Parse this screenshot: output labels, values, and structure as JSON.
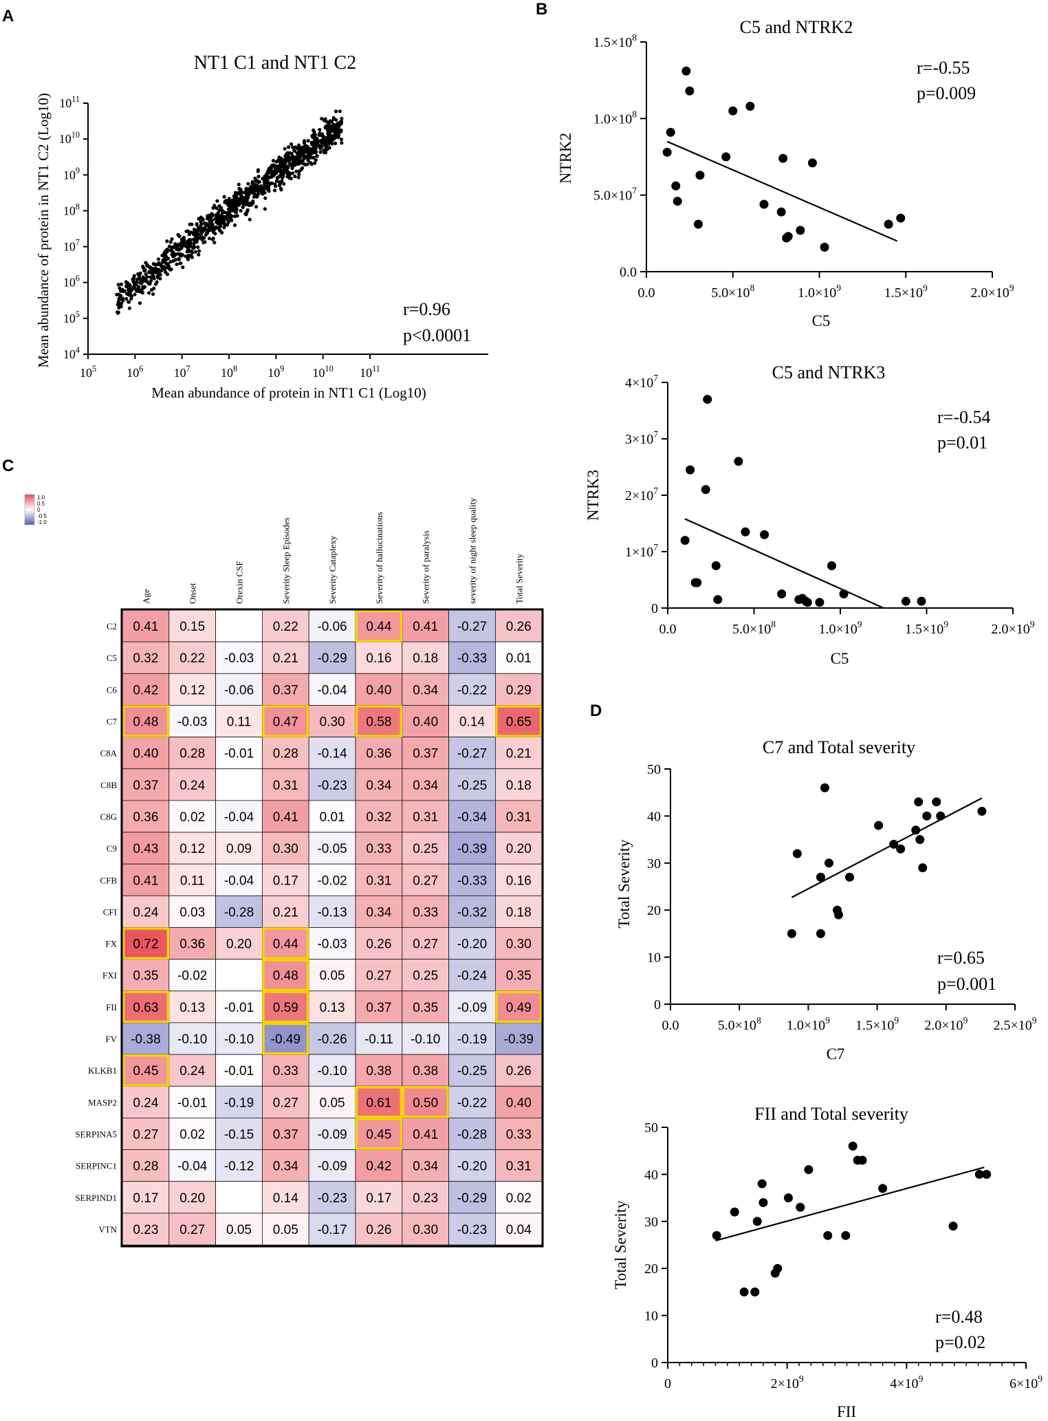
{
  "panels": {
    "a": {
      "letter": "A"
    },
    "b": {
      "letter": "B"
    },
    "c": {
      "letter": "C"
    },
    "d": {
      "letter": "D"
    }
  },
  "chart_data": [
    {
      "id": "A",
      "type": "scatter",
      "title": "NT1 C1 and NT1 C2",
      "xlabel": "Mean abundance of protein in NT1 C1 (Log10)",
      "ylabel": "Mean abundance of protein in NT1 C2 (Log10)",
      "xscale": "log10",
      "yscale": "log10",
      "xlim": [
        5,
        11
      ],
      "ylim": [
        4,
        11
      ],
      "xticks": [
        5,
        6,
        7,
        8,
        9,
        10,
        11
      ],
      "yticks": [
        4,
        5,
        6,
        7,
        8,
        9,
        10,
        11
      ],
      "annotation": [
        "r=0.96",
        "p<0.0001"
      ],
      "n_points_approx": 1100,
      "trend": "log10(y) ≈ log10(x) with spread ~0.4 decades; x from ~5.6 to ~10.4"
    },
    {
      "id": "B1",
      "type": "scatter",
      "title": "C5 and NTRK2",
      "xlabel": "C5",
      "ylabel": "NTRK2",
      "xlim": [
        0,
        2000000000
      ],
      "ylim": [
        0,
        150000000
      ],
      "xticks": [
        "0.0",
        "5.0×10⁸",
        "1.0×10⁹",
        "1.5×10⁹",
        "2.0×10⁹"
      ],
      "yticks": [
        "0.0",
        "5.0×10⁷",
        "1.0×10⁸",
        "1.5×10⁸"
      ],
      "annotation": [
        "r=-0.55",
        "p=0.009"
      ],
      "points": [
        [
          0.12,
          7.8
        ],
        [
          0.14,
          9.1
        ],
        [
          0.17,
          5.6
        ],
        [
          0.18,
          4.6
        ],
        [
          0.23,
          13.1
        ],
        [
          0.25,
          11.8
        ],
        [
          0.3,
          3.1
        ],
        [
          0.31,
          6.3
        ],
        [
          0.46,
          7.5
        ],
        [
          0.5,
          10.5
        ],
        [
          0.6,
          10.8
        ],
        [
          0.68,
          4.4
        ],
        [
          0.78,
          3.9
        ],
        [
          0.79,
          7.4
        ],
        [
          0.81,
          2.2
        ],
        [
          0.82,
          2.3
        ],
        [
          0.89,
          2.7
        ],
        [
          0.96,
          7.1
        ],
        [
          1.03,
          1.6
        ],
        [
          1.4,
          3.1
        ],
        [
          1.47,
          3.5
        ]
      ],
      "points_units": "x in 1e9, y in 1e7",
      "fit": {
        "x0": 0.12,
        "y0": 8.5,
        "x1": 1.45,
        "y1": 2.0
      }
    },
    {
      "id": "B2",
      "type": "scatter",
      "title": "C5 and NTRK3",
      "xlabel": "C5",
      "ylabel": "NTRK3",
      "xlim": [
        0,
        2000000000
      ],
      "ylim": [
        0,
        40000000
      ],
      "xticks": [
        "0.0",
        "5.0×10⁸",
        "1.0×10⁹",
        "1.5×10⁹",
        "2.0×10⁹"
      ],
      "yticks": [
        "0",
        "1×10⁷",
        "2×10⁷",
        "3×10⁷",
        "4×10⁷"
      ],
      "annotation": [
        "r=-0.54",
        "p=0.01"
      ],
      "points": [
        [
          0.1,
          1.2
        ],
        [
          0.13,
          2.45
        ],
        [
          0.16,
          0.45
        ],
        [
          0.17,
          0.45
        ],
        [
          0.22,
          2.1
        ],
        [
          0.23,
          3.7
        ],
        [
          0.28,
          0.75
        ],
        [
          0.29,
          0.15
        ],
        [
          0.41,
          2.6
        ],
        [
          0.45,
          1.35
        ],
        [
          0.56,
          1.3
        ],
        [
          0.66,
          0.25
        ],
        [
          0.76,
          0.15
        ],
        [
          0.78,
          0.17
        ],
        [
          0.8,
          0.12
        ],
        [
          0.81,
          0.1
        ],
        [
          0.88,
          0.1
        ],
        [
          0.95,
          0.75
        ],
        [
          1.02,
          0.25
        ],
        [
          1.38,
          0.12
        ],
        [
          1.47,
          0.12
        ]
      ],
      "points_units": "x in 1e9, y in 1e7",
      "fit": {
        "x0": 0.1,
        "y0": 1.58,
        "x1": 1.25,
        "y1": 0.0
      }
    },
    {
      "id": "C",
      "type": "heatmap",
      "columns": [
        "Age",
        "Onset",
        "Orexin CSF",
        "Severity Sleep Episodes",
        "Severity Cataplexy",
        "Severity of hallucinations",
        "Severity of paralysis",
        "severity of night sleep quality",
        "Total Severity"
      ],
      "rows": [
        "C2",
        "C5",
        "C6",
        "C7",
        "C8A",
        "C8B",
        "C8G",
        "C9",
        "CFB",
        "CFI",
        "FX",
        "FXI",
        "FII",
        "FV",
        "KLKB1",
        "MASP2",
        "SERPINA5",
        "SERPINC1",
        "SERPIND1",
        "VTN"
      ],
      "values": [
        [
          "0.41",
          "0.15",
          "",
          "0.22",
          "-0.06",
          "0.44",
          "0.41",
          "-0.27",
          "0.26"
        ],
        [
          "0.32",
          "0.22",
          "-0.03",
          "0.21",
          "-0.29",
          "0.16",
          "0.18",
          "-0.33",
          "0.01"
        ],
        [
          "0.42",
          "0.12",
          "-0.06",
          "0.37",
          "-0.04",
          "0.40",
          "0.34",
          "-0.22",
          "0.29"
        ],
        [
          "0.48",
          "-0.03",
          "0.11",
          "0.47",
          "0.30",
          "0.58",
          "0.40",
          "0.14",
          "0.65"
        ],
        [
          "0.40",
          "0.28",
          "-0.01",
          "0.28",
          "-0.14",
          "0.36",
          "0.37",
          "-0.27",
          "0.21"
        ],
        [
          "0.37",
          "0.24",
          "",
          "0.31",
          "-0.23",
          "0.34",
          "0.34",
          "-0.25",
          "0.18"
        ],
        [
          "0.36",
          "0.02",
          "-0.04",
          "0.41",
          "0.01",
          "0.32",
          "0.31",
          "-0.34",
          "0.31"
        ],
        [
          "0.43",
          "0.12",
          "0.09",
          "0.30",
          "-0.05",
          "0.33",
          "0.25",
          "-0.39",
          "0.20"
        ],
        [
          "0.41",
          "0.11",
          "-0.04",
          "0.17",
          "-0.02",
          "0.31",
          "0.27",
          "-0.33",
          "0.16"
        ],
        [
          "0.24",
          "0.03",
          "-0.28",
          "0.21",
          "-0.13",
          "0.34",
          "0.33",
          "-0.32",
          "0.18"
        ],
        [
          "0.72",
          "0.36",
          "0.20",
          "0.44",
          "-0.03",
          "0.26",
          "0.27",
          "-0.20",
          "0.30"
        ],
        [
          "0.35",
          "-0.02",
          "",
          "0.48",
          "0.05",
          "0.27",
          "0.25",
          "-0.24",
          "0.35"
        ],
        [
          "0.63",
          "0.13",
          "-0.01",
          "0.59",
          "0.13",
          "0.37",
          "0.35",
          "-0.09",
          "0.49"
        ],
        [
          "-0.38",
          "-0.10",
          "-0.10",
          "-0.49",
          "-0.26",
          "-0.11",
          "-0.10",
          "-0.19",
          "-0.39"
        ],
        [
          "0.45",
          "0.24",
          "-0.01",
          "0.33",
          "-0.10",
          "0.38",
          "0.38",
          "-0.25",
          "0.26"
        ],
        [
          "0.24",
          "-0.01",
          "-0.19",
          "0.27",
          "0.05",
          "0.61",
          "0.50",
          "-0.22",
          "0.40"
        ],
        [
          "0.27",
          "0.02",
          "-0.15",
          "0.37",
          "-0.09",
          "0.45",
          "0.41",
          "-0.28",
          "0.33"
        ],
        [
          "0.28",
          "-0.04",
          "-0.12",
          "0.34",
          "-0.09",
          "0.42",
          "0.34",
          "-0.20",
          "0.31"
        ],
        [
          "0.17",
          "0.20",
          "",
          "0.14",
          "-0.23",
          "0.17",
          "0.23",
          "-0.29",
          "0.02"
        ],
        [
          "0.23",
          "0.27",
          "0.05",
          "0.05",
          "-0.17",
          "0.26",
          "0.30",
          "-0.23",
          "0.04"
        ]
      ],
      "highlighted": [
        [
          0,
          5
        ],
        [
          3,
          0
        ],
        [
          3,
          3
        ],
        [
          3,
          5
        ],
        [
          3,
          8
        ],
        [
          10,
          0
        ],
        [
          10,
          3
        ],
        [
          11,
          3
        ],
        [
          12,
          0
        ],
        [
          12,
          3
        ],
        [
          12,
          8
        ],
        [
          13,
          3
        ],
        [
          14,
          0
        ],
        [
          15,
          5
        ],
        [
          15,
          6
        ],
        [
          16,
          5
        ]
      ],
      "legend": {
        "labels": [
          "1.0",
          "0.5",
          "0",
          "-0.5",
          "-1.0"
        ],
        "max_color": "#e8505a",
        "min_color": "#5a5ab4"
      }
    },
    {
      "id": "D1",
      "type": "scatter",
      "title": "C7 and Total severity",
      "xlabel": "C7",
      "ylabel": "Total Severity",
      "xlim": [
        0,
        2500000000
      ],
      "ylim": [
        0,
        50
      ],
      "xticks": [
        "0.0",
        "5.0×10⁸",
        "1.0×10⁹",
        "1.5×10⁹",
        "2.0×10⁹",
        "2.5×10⁹"
      ],
      "yticks": [
        "0",
        "10",
        "20",
        "30",
        "40",
        "50"
      ],
      "annotation": [
        "r=0.65",
        "p=0.001"
      ],
      "points": [
        [
          0.88,
          15
        ],
        [
          0.92,
          32
        ],
        [
          1.09,
          27
        ],
        [
          1.09,
          15
        ],
        [
          1.12,
          46
        ],
        [
          1.15,
          30
        ],
        [
          1.21,
          20
        ],
        [
          1.22,
          19
        ],
        [
          1.3,
          27
        ],
        [
          1.51,
          38
        ],
        [
          1.62,
          34
        ],
        [
          1.67,
          33
        ],
        [
          1.78,
          37
        ],
        [
          1.8,
          43
        ],
        [
          1.81,
          35
        ],
        [
          1.83,
          29
        ],
        [
          1.86,
          40
        ],
        [
          1.93,
          43
        ],
        [
          1.96,
          40
        ],
        [
          2.26,
          41
        ]
      ],
      "points_units": "x in 1e9",
      "fit": {
        "x0": 0.88,
        "y0": 22.7,
        "x1": 2.26,
        "y1": 43.8
      }
    },
    {
      "id": "D2",
      "type": "scatter",
      "title": "FII and Total severity",
      "xlabel": "FII",
      "ylabel": "Total Severity",
      "xlim": [
        0,
        6000000000
      ],
      "ylim": [
        0,
        50
      ],
      "xticks": [
        "0",
        "2×10⁹",
        "4×10⁹",
        "6×10⁹"
      ],
      "yticks": [
        "0",
        "10",
        "20",
        "30",
        "40",
        "50"
      ],
      "annotation": [
        "r=0.48",
        "p=0.02"
      ],
      "points": [
        [
          0.82,
          27
        ],
        [
          1.12,
          32
        ],
        [
          1.28,
          15
        ],
        [
          1.46,
          15
        ],
        [
          1.5,
          30
        ],
        [
          1.58,
          38
        ],
        [
          1.6,
          34
        ],
        [
          1.8,
          19
        ],
        [
          1.84,
          20
        ],
        [
          2.02,
          35
        ],
        [
          2.22,
          33
        ],
        [
          2.36,
          41
        ],
        [
          2.68,
          27
        ],
        [
          2.98,
          27
        ],
        [
          3.1,
          46
        ],
        [
          3.18,
          43
        ],
        [
          3.26,
          43
        ],
        [
          3.6,
          37
        ],
        [
          4.78,
          29
        ],
        [
          5.22,
          40
        ],
        [
          5.34,
          40
        ]
      ],
      "points_units": "x in 1e9",
      "fit": {
        "x0": 0.8,
        "y0": 25.9,
        "x1": 5.3,
        "y1": 41.5
      }
    }
  ]
}
